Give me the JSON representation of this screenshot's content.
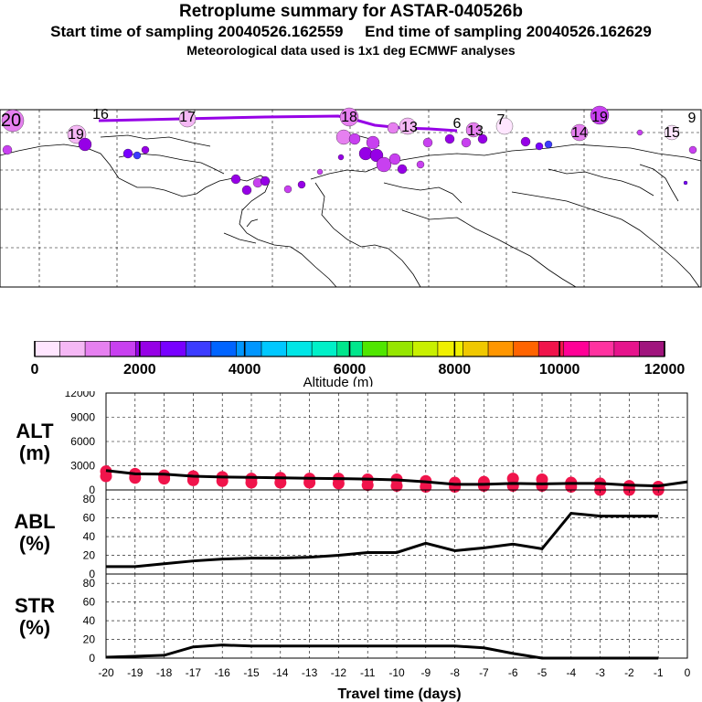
{
  "header": {
    "title": "Retroplume summary for ASTAR-040526b",
    "sampling": "Start time of sampling 20040526.162559     End time of sampling 20040526.162629",
    "met": "Meteorological data used is 1x1 deg ECMWF analyses"
  },
  "map": {
    "day_labels": [
      "20",
      "19",
      "16",
      "17",
      "18",
      "13",
      "6",
      "13",
      "7",
      "19",
      "14",
      "15",
      "9"
    ]
  },
  "colorbar": {
    "colors": [
      "#ffe6ff",
      "#f5b8f5",
      "#e680f0",
      "#c840f0",
      "#9600e6",
      "#7800ff",
      "#3c3cff",
      "#0064ff",
      "#0096ff",
      "#00c8ff",
      "#00e6e6",
      "#00f0c8",
      "#00e68c",
      "#50e600",
      "#96e600",
      "#c8f000",
      "#f0f000",
      "#f0c800",
      "#ff9600",
      "#ff6400",
      "#f0144b",
      "#ff0096",
      "#ff32a0",
      "#e6148c",
      "#a0147d"
    ],
    "ticks": [
      "0",
      "2000",
      "4000",
      "6000",
      "8000",
      "10000",
      "12000"
    ],
    "label": "Altitude (m)"
  },
  "chart_data": [
    {
      "type": "line",
      "panel": "ALT",
      "ylabel": "ALT\n(m)",
      "ylabel_lines": [
        "ALT",
        "(m)"
      ],
      "ylim": [
        0,
        12000
      ],
      "yticks": [
        "12000",
        "9000",
        "6000",
        "3000",
        "0"
      ],
      "x": [
        -20,
        -19,
        -18,
        -17,
        -16,
        -15,
        -14,
        -13,
        -12,
        -11,
        -10,
        -9,
        -8,
        -7,
        -6,
        -5,
        -4,
        -3,
        -2,
        -1,
        0
      ],
      "series": [
        {
          "name": "mean altitude",
          "values": [
            2400,
            2000,
            1950,
            1700,
            1600,
            1550,
            1500,
            1450,
            1400,
            1350,
            1250,
            1000,
            700,
            700,
            800,
            750,
            800,
            800,
            600,
            500,
            1000
          ]
        }
      ],
      "scatter": {
        "x": [
          -20,
          -19,
          -18,
          -17,
          -16,
          -15,
          -14,
          -13,
          -12,
          -11,
          -10,
          -9,
          -8,
          -7,
          -6,
          -5,
          -4,
          -3,
          -2,
          -1
        ],
        "upper": [
          2300,
          2000,
          1800,
          1700,
          1600,
          1400,
          1500,
          1400,
          1400,
          1300,
          1300,
          1100,
          900,
          1000,
          1400,
          1300,
          900,
          800,
          500,
          400
        ],
        "lower": [
          1700,
          1500,
          1400,
          1200,
          1100,
          900,
          900,
          900,
          800,
          600,
          500,
          400,
          400,
          500,
          500,
          500,
          400,
          0,
          0,
          0
        ]
      }
    },
    {
      "type": "line",
      "panel": "ABL",
      "ylabel": "ABL\n(%)",
      "ylabel_lines": [
        "ABL",
        "(%)"
      ],
      "ylim": [
        0,
        90
      ],
      "yticks": [
        "80",
        "60",
        "40",
        "20",
        "0"
      ],
      "x": [
        -20,
        -19,
        -18,
        -17,
        -16,
        -15,
        -14,
        -13,
        -12,
        -11,
        -10,
        -9,
        -8,
        -7,
        -6,
        -5,
        -4,
        -3,
        -2,
        -1
      ],
      "series": [
        {
          "name": "ABL fraction",
          "values": [
            8,
            8,
            11,
            14,
            16,
            17,
            17,
            18,
            20,
            23,
            23,
            33,
            25,
            28,
            32,
            27,
            65,
            62,
            62,
            62
          ]
        }
      ]
    },
    {
      "type": "line",
      "panel": "STR",
      "ylabel": "STR\n(%)",
      "ylabel_lines": [
        "STR",
        "(%)"
      ],
      "ylim": [
        0,
        90
      ],
      "yticks": [
        "80",
        "60",
        "40",
        "20",
        "0"
      ],
      "x": [
        -20,
        -19,
        -18,
        -17,
        -16,
        -15,
        -14,
        -13,
        -12,
        -11,
        -10,
        -9,
        -8,
        -7,
        -6,
        -5,
        -4,
        -3,
        -2,
        -1
      ],
      "series": [
        {
          "name": "stratospheric fraction",
          "values": [
            1,
            2,
            3,
            12,
            14,
            13,
            13,
            13,
            13,
            13,
            13,
            13,
            13,
            11,
            5,
            0,
            0,
            0,
            0,
            0
          ]
        }
      ]
    }
  ],
  "xaxis": {
    "ticks": [
      "-20",
      "-19",
      "-18",
      "-17",
      "-16",
      "-15",
      "-14",
      "-13",
      "-12",
      "-11",
      "-10",
      "-9",
      "-8",
      "-7",
      "-6",
      "-5",
      "-4",
      "-3",
      "-2",
      "-1",
      "0"
    ],
    "label": "Travel time (days)"
  }
}
